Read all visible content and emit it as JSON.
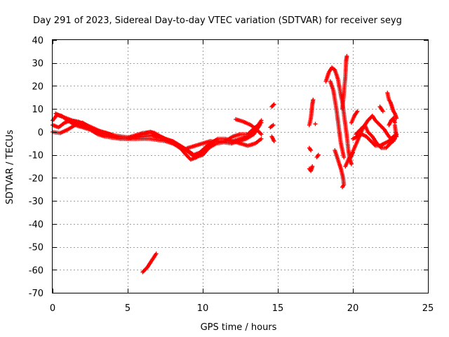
{
  "chart_data": {
    "type": "scatter",
    "title": "Day 291 of 2023, Sidereal Day-to-day VTEC variation (SDTVAR) for receiver seyg",
    "xlabel": "GPS time / hours",
    "ylabel": "SDTVAR / TECUs",
    "xlim": [
      0,
      25
    ],
    "ylim": [
      -70,
      40
    ],
    "xticks": [
      0,
      5,
      10,
      15,
      20,
      25
    ],
    "yticks": [
      -70,
      -60,
      -50,
      -40,
      -30,
      -20,
      -10,
      0,
      10,
      20,
      30,
      40
    ],
    "grid": true,
    "marker": "+",
    "series": [
      {
        "name": "SDTVAR",
        "color": "#ff0000",
        "tracks": [
          [
            [
              0.0,
              5
            ],
            [
              0.3,
              7.5
            ],
            [
              0.6,
              7
            ],
            [
              1.0,
              5
            ],
            [
              1.5,
              3
            ],
            [
              2.0,
              2
            ],
            [
              2.5,
              1
            ],
            [
              3.0,
              -1
            ],
            [
              3.5,
              -2
            ],
            [
              4.0,
              -2.5
            ],
            [
              4.5,
              -3
            ],
            [
              5.0,
              -3
            ],
            [
              5.5,
              -2
            ],
            [
              6.0,
              -1
            ],
            [
              6.5,
              0
            ],
            [
              7.0,
              -1.5
            ],
            [
              7.5,
              -3
            ],
            [
              8.0,
              -4
            ],
            [
              8.5,
              -6
            ],
            [
              9.0,
              -8
            ],
            [
              9.4,
              -10
            ],
            [
              9.8,
              -9
            ],
            [
              10.3,
              -6
            ],
            [
              10.8,
              -4
            ],
            [
              11.5,
              -4
            ],
            [
              12.0,
              -4
            ],
            [
              12.5,
              -3
            ],
            [
              13.0,
              -2
            ],
            [
              13.5,
              1
            ],
            [
              13.9,
              5
            ]
          ],
          [
            [
              0.0,
              3
            ],
            [
              0.4,
              2
            ],
            [
              0.8,
              4
            ],
            [
              1.2,
              5
            ],
            [
              1.8,
              4
            ],
            [
              2.2,
              2
            ],
            [
              2.8,
              1
            ],
            [
              3.2,
              0
            ],
            [
              3.8,
              -1
            ],
            [
              4.3,
              -2.5
            ],
            [
              4.8,
              -3
            ],
            [
              5.3,
              -3
            ],
            [
              6.0,
              -3
            ],
            [
              6.5,
              -3
            ],
            [
              7.0,
              -3.5
            ],
            [
              7.5,
              -4
            ],
            [
              8.0,
              -5
            ],
            [
              8.5,
              -7
            ],
            [
              8.9,
              -10
            ],
            [
              9.2,
              -12
            ],
            [
              9.6,
              -11
            ],
            [
              10.0,
              -8
            ],
            [
              10.5,
              -5
            ],
            [
              11.0,
              -3
            ],
            [
              11.5,
              -3
            ],
            [
              12.0,
              -4
            ],
            [
              12.5,
              -5
            ],
            [
              13.0,
              -6
            ],
            [
              13.5,
              -5
            ],
            [
              13.9,
              -3
            ]
          ],
          [
            [
              0.0,
              0
            ],
            [
              0.5,
              -0.5
            ],
            [
              1.0,
              1
            ],
            [
              1.5,
              3
            ],
            [
              2.0,
              4
            ],
            [
              2.5,
              2
            ],
            [
              3.0,
              0
            ],
            [
              3.5,
              -1
            ],
            [
              4.0,
              -2
            ],
            [
              4.5,
              -2
            ],
            [
              5.0,
              -2.5
            ],
            [
              5.5,
              -1.5
            ],
            [
              6.0,
              -0.5
            ],
            [
              6.5,
              0
            ],
            [
              6.8,
              -0.5
            ],
            [
              7.2,
              -2
            ],
            [
              7.8,
              -4
            ],
            [
              8.3,
              -6
            ],
            [
              8.7,
              -8
            ],
            [
              9.0,
              -7
            ],
            [
              9.5,
              -6
            ],
            [
              10.0,
              -5
            ],
            [
              10.5,
              -4
            ],
            [
              11.0,
              -4.5
            ],
            [
              11.5,
              -4
            ],
            [
              12.0,
              -2
            ],
            [
              12.5,
              -1
            ],
            [
              13.0,
              -1
            ],
            [
              13.5,
              2
            ],
            [
              13.9,
              4
            ]
          ],
          [
            [
              0.2,
              8
            ],
            [
              0.5,
              7
            ],
            [
              0.9,
              6
            ],
            [
              1.3,
              5
            ],
            [
              1.7,
              4.5
            ],
            [
              2.1,
              3.5
            ],
            [
              2.6,
              2
            ],
            [
              3.1,
              0.5
            ],
            [
              3.6,
              -0.5
            ],
            [
              4.1,
              -1.5
            ],
            [
              4.6,
              -2
            ],
            [
              5.1,
              -2.5
            ],
            [
              5.6,
              -2.5
            ],
            [
              6.1,
              -2
            ],
            [
              6.6,
              -1.5
            ],
            [
              7.1,
              -2.5
            ],
            [
              7.6,
              -3.5
            ],
            [
              8.1,
              -4.5
            ],
            [
              8.6,
              -6.5
            ],
            [
              9.1,
              -9
            ],
            [
              9.5,
              -11
            ],
            [
              10.0,
              -10
            ],
            [
              10.4,
              -7
            ],
            [
              10.9,
              -5
            ],
            [
              11.4,
              -4.5
            ],
            [
              11.9,
              -5
            ],
            [
              12.4,
              -4
            ],
            [
              12.9,
              -3
            ],
            [
              13.4,
              -1
            ],
            [
              13.8,
              3
            ]
          ],
          [
            [
              12.2,
              5.5
            ],
            [
              12.7,
              4.5
            ],
            [
              13.2,
              3
            ],
            [
              13.6,
              1
            ],
            [
              13.9,
              -1
            ]
          ],
          [
            [
              6.0,
              -61
            ],
            [
              6.3,
              -59
            ],
            [
              6.6,
              -56
            ],
            [
              6.9,
              -53
            ]
          ],
          [
            [
              14.6,
              11
            ],
            [
              14.75,
              12
            ]
          ],
          [
            [
              14.6,
              -2
            ],
            [
              14.75,
              -4
            ]
          ],
          [
            [
              14.5,
              2
            ],
            [
              14.7,
              3
            ]
          ],
          [
            [
              17.1,
              -16
            ],
            [
              17.2,
              -17
            ],
            [
              17.3,
              -15
            ]
          ],
          [
            [
              17.1,
              -7
            ],
            [
              17.2,
              -8
            ]
          ],
          [
            [
              17.1,
              3
            ],
            [
              17.2,
              6
            ],
            [
              17.25,
              9
            ],
            [
              17.3,
              12
            ],
            [
              17.35,
              14
            ]
          ],
          [
            [
              17.5,
              3.5
            ]
          ],
          [
            [
              17.6,
              -11
            ],
            [
              17.7,
              -10
            ]
          ],
          [
            [
              18.2,
              22
            ],
            [
              18.4,
              26
            ],
            [
              18.6,
              28
            ],
            [
              18.8,
              27
            ],
            [
              19.0,
              23
            ],
            [
              19.2,
              16
            ],
            [
              19.3,
              13
            ],
            [
              19.4,
              8
            ],
            [
              19.5,
              3
            ],
            [
              19.6,
              -2
            ],
            [
              19.7,
              -8
            ],
            [
              19.8,
              -12
            ],
            [
              19.9,
              -14
            ]
          ],
          [
            [
              18.5,
              22
            ],
            [
              18.7,
              18
            ],
            [
              18.9,
              10
            ],
            [
              19.0,
              5
            ],
            [
              19.1,
              0
            ],
            [
              19.2,
              -5
            ],
            [
              19.3,
              -8
            ],
            [
              19.4,
              -11
            ]
          ],
          [
            [
              18.8,
              -8
            ],
            [
              19.0,
              -12
            ],
            [
              19.2,
              -16
            ],
            [
              19.35,
              -20
            ],
            [
              19.4,
              -23
            ],
            [
              19.3,
              -24
            ]
          ],
          [
            [
              19.3,
              10
            ],
            [
              19.4,
              17
            ],
            [
              19.5,
              24
            ],
            [
              19.55,
              31
            ],
            [
              19.6,
              33
            ]
          ],
          [
            [
              19.5,
              -15
            ],
            [
              19.7,
              -12
            ],
            [
              19.9,
              -10
            ],
            [
              20.1,
              -7
            ],
            [
              20.3,
              -4
            ],
            [
              20.5,
              -1
            ],
            [
              20.7,
              2
            ],
            [
              21.0,
              5
            ],
            [
              21.3,
              7
            ],
            [
              21.5,
              5
            ],
            [
              21.8,
              3
            ],
            [
              22.1,
              1
            ],
            [
              22.4,
              -2
            ],
            [
              22.7,
              -4
            ],
            [
              22.9,
              -1
            ]
          ],
          [
            [
              19.9,
              4
            ],
            [
              20.1,
              7
            ],
            [
              20.3,
              9
            ]
          ],
          [
            [
              19.8,
              -12
            ],
            [
              20.0,
              -9
            ]
          ],
          [
            [
              20.0,
              -3
            ],
            [
              20.3,
              -2
            ],
            [
              20.6,
              -1
            ],
            [
              20.9,
              -2
            ],
            [
              21.2,
              -4
            ],
            [
              21.5,
              -6
            ],
            [
              21.8,
              -6
            ],
            [
              22.1,
              -5
            ],
            [
              22.4,
              -4
            ],
            [
              22.7,
              -2
            ],
            [
              22.9,
              -1
            ]
          ],
          [
            [
              20.2,
              -1
            ],
            [
              20.5,
              1
            ],
            [
              20.8,
              3
            ],
            [
              21.0,
              0
            ],
            [
              21.3,
              -2
            ],
            [
              21.6,
              -5
            ],
            [
              21.9,
              -7
            ],
            [
              22.2,
              -7
            ],
            [
              22.5,
              -5
            ],
            [
              22.8,
              -3
            ]
          ],
          [
            [
              21.8,
              11
            ],
            [
              22.0,
              9
            ]
          ],
          [
            [
              22.3,
              17
            ],
            [
              22.4,
              14
            ],
            [
              22.5,
              13
            ],
            [
              22.6,
              11
            ],
            [
              22.7,
              9
            ],
            [
              22.8,
              8
            ],
            [
              22.9,
              6
            ]
          ],
          [
            [
              22.8,
              3
            ],
            [
              22.85,
              0
            ],
            [
              22.9,
              -2
            ]
          ],
          [
            [
              22.4,
              3
            ],
            [
              22.55,
              5
            ],
            [
              22.7,
              6
            ],
            [
              22.8,
              4
            ]
          ]
        ]
      }
    ]
  }
}
